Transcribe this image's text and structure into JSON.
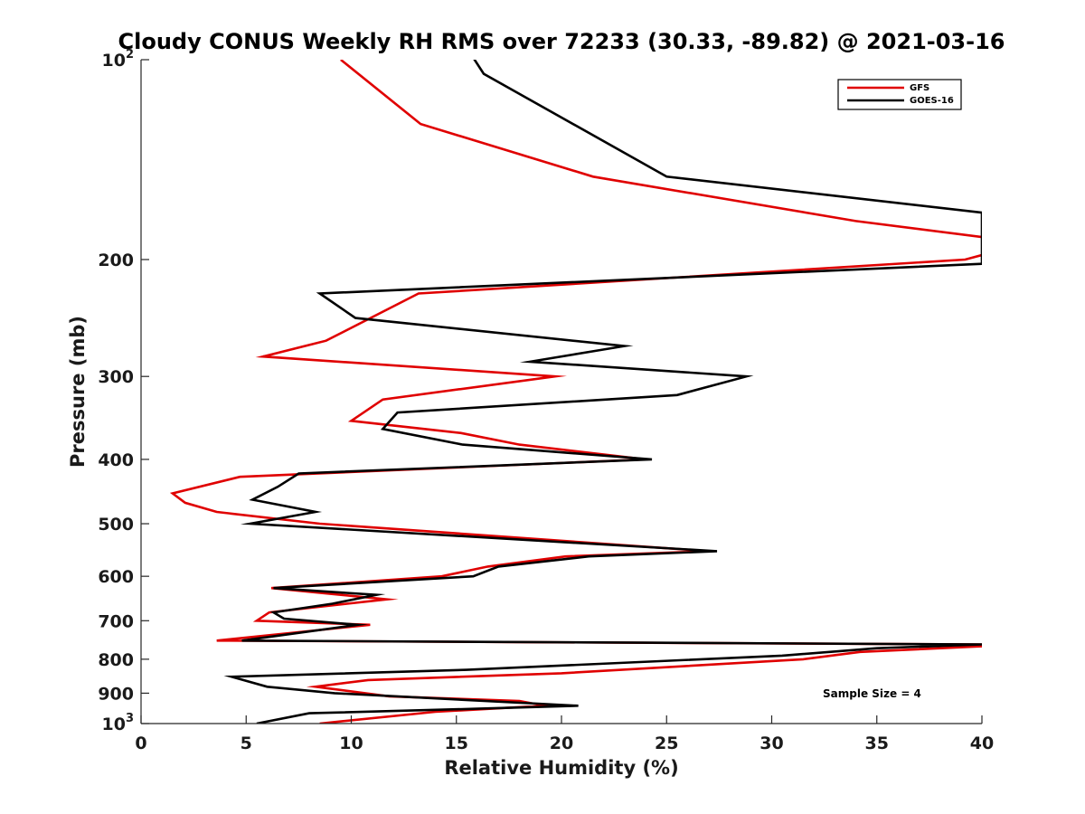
{
  "chart_data": {
    "type": "line",
    "title": "Cloudy CONUS Weekly RH RMS over 72233 (30.33, -89.82) @ 2021-03-16",
    "xlabel": "Relative Humidity (%)",
    "ylabel": "Pressure (mb)",
    "xlim": [
      0,
      40
    ],
    "ylim": [
      100,
      1000
    ],
    "yscale": "log",
    "yreversed": true,
    "grid": false,
    "legend_position": "top-right",
    "x_ticks": [
      0,
      5,
      10,
      15,
      20,
      25,
      30,
      35,
      40
    ],
    "x_tick_labels": [
      "0",
      "5",
      "10",
      "15",
      "20",
      "25",
      "30",
      "35",
      "40"
    ],
    "y_ticks": [
      100,
      200,
      300,
      400,
      500,
      600,
      700,
      800,
      900,
      1000
    ],
    "y_tick_labels": [
      {
        "base": "10",
        "exp": "2"
      },
      {
        "base": "200",
        "exp": ""
      },
      {
        "base": "300",
        "exp": ""
      },
      {
        "base": "400",
        "exp": ""
      },
      {
        "base": "500",
        "exp": ""
      },
      {
        "base": "600",
        "exp": ""
      },
      {
        "base": "700",
        "exp": ""
      },
      {
        "base": "800",
        "exp": ""
      },
      {
        "base": "900",
        "exp": ""
      },
      {
        "base": "10",
        "exp": "3"
      }
    ],
    "annotation": "Sample Size = 4",
    "series": [
      {
        "name": "GFS",
        "color": "#e00000",
        "points": [
          [
            9.5,
            100
          ],
          [
            13.3,
            125
          ],
          [
            21.5,
            150
          ],
          [
            34.0,
            175
          ],
          [
            40.0,
            185
          ],
          [
            40.5,
            195
          ],
          [
            39.2,
            200
          ],
          [
            13.2,
            225
          ],
          [
            8.8,
            265
          ],
          [
            5.8,
            280
          ],
          [
            19.7,
            300
          ],
          [
            11.5,
            325
          ],
          [
            10.0,
            350
          ],
          [
            15.2,
            365
          ],
          [
            18.0,
            380
          ],
          [
            24.0,
            400
          ],
          [
            4.7,
            425
          ],
          [
            1.5,
            450
          ],
          [
            2.1,
            465
          ],
          [
            3.6,
            480
          ],
          [
            8.5,
            500
          ],
          [
            27.0,
            550
          ],
          [
            20.2,
            560
          ],
          [
            16.5,
            580
          ],
          [
            14.3,
            600
          ],
          [
            6.2,
            625
          ],
          [
            11.7,
            650
          ],
          [
            9.8,
            660
          ],
          [
            6.1,
            680
          ],
          [
            5.5,
            700
          ],
          [
            10.9,
            710
          ],
          [
            3.6,
            750
          ],
          [
            40.0,
            760
          ],
          [
            40.0,
            765
          ],
          [
            34.2,
            780
          ],
          [
            31.5,
            800
          ],
          [
            20.0,
            840
          ],
          [
            10.8,
            860
          ],
          [
            8.3,
            880
          ],
          [
            11.8,
            910
          ],
          [
            18.0,
            925
          ],
          [
            19.2,
            940
          ],
          [
            14.0,
            960
          ],
          [
            8.5,
            1000
          ]
        ]
      },
      {
        "name": "GOES-16",
        "color": "#000000",
        "points": [
          [
            15.5,
            96
          ],
          [
            16.3,
            105
          ],
          [
            25.0,
            150
          ],
          [
            40.0,
            170
          ],
          [
            40.0,
            203
          ],
          [
            8.5,
            225
          ],
          [
            10.2,
            245
          ],
          [
            23.0,
            270
          ],
          [
            18.5,
            285
          ],
          [
            28.8,
            300
          ],
          [
            25.5,
            320
          ],
          [
            12.2,
            340
          ],
          [
            11.5,
            360
          ],
          [
            15.3,
            380
          ],
          [
            24.3,
            400
          ],
          [
            7.5,
            420
          ],
          [
            6.5,
            440
          ],
          [
            5.3,
            460
          ],
          [
            8.3,
            480
          ],
          [
            5.2,
            500
          ],
          [
            27.4,
            550
          ],
          [
            21.3,
            560
          ],
          [
            17.0,
            580
          ],
          [
            15.8,
            600
          ],
          [
            6.3,
            625
          ],
          [
            11.2,
            640
          ],
          [
            9.1,
            660
          ],
          [
            6.3,
            680
          ],
          [
            6.8,
            695
          ],
          [
            10.3,
            710
          ],
          [
            4.8,
            750
          ],
          [
            40.0,
            760
          ],
          [
            35.0,
            770
          ],
          [
            30.5,
            790
          ],
          [
            15.5,
            830
          ],
          [
            4.3,
            850
          ],
          [
            6.0,
            880
          ],
          [
            9.2,
            900
          ],
          [
            20.8,
            940
          ],
          [
            16.0,
            950
          ],
          [
            8.0,
            965
          ],
          [
            5.5,
            1000
          ]
        ]
      }
    ]
  }
}
